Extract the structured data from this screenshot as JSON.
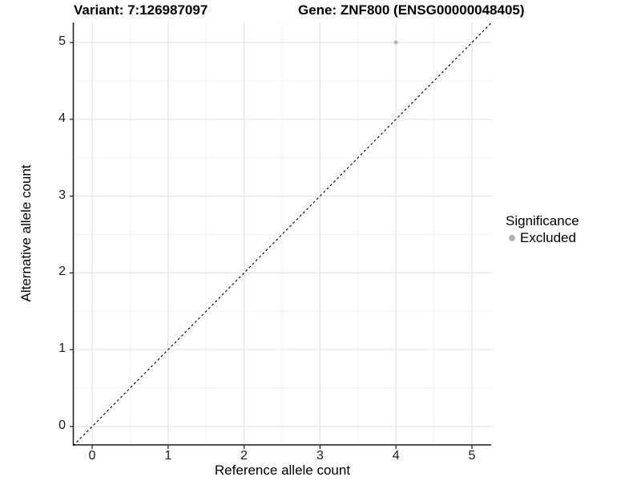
{
  "header": {
    "variant_title": "Variant: 7:126987097",
    "gene_title": "Gene: ZNF800 (ENSG00000048405)"
  },
  "chart_data": {
    "type": "scatter",
    "title": "Variant: 7:126987097    Gene: ZNF800 (ENSG00000048405)",
    "xlabel": "Reference allele count",
    "ylabel": "Alternative allele count",
    "xlim": [
      -0.25,
      5.25
    ],
    "ylim": [
      -0.25,
      5.25
    ],
    "x_ticks": [
      0,
      1,
      2,
      3,
      4,
      5
    ],
    "y_ticks": [
      0,
      1,
      2,
      3,
      4,
      5
    ],
    "grid": {
      "major": true,
      "minor": true,
      "major_color": "#e5e5e5",
      "minor_color": "#f2f2f2"
    },
    "axis_color": "#1a1a1a",
    "reference_line": {
      "type": "identity",
      "equation": "y = x",
      "style": "dashed",
      "color": "#000000"
    },
    "series": [
      {
        "name": "Excluded",
        "color": "#b3b3b3",
        "points": [
          {
            "x": 4,
            "y": 5
          }
        ]
      }
    ],
    "legend": {
      "title": "Significance",
      "position": "right"
    }
  }
}
